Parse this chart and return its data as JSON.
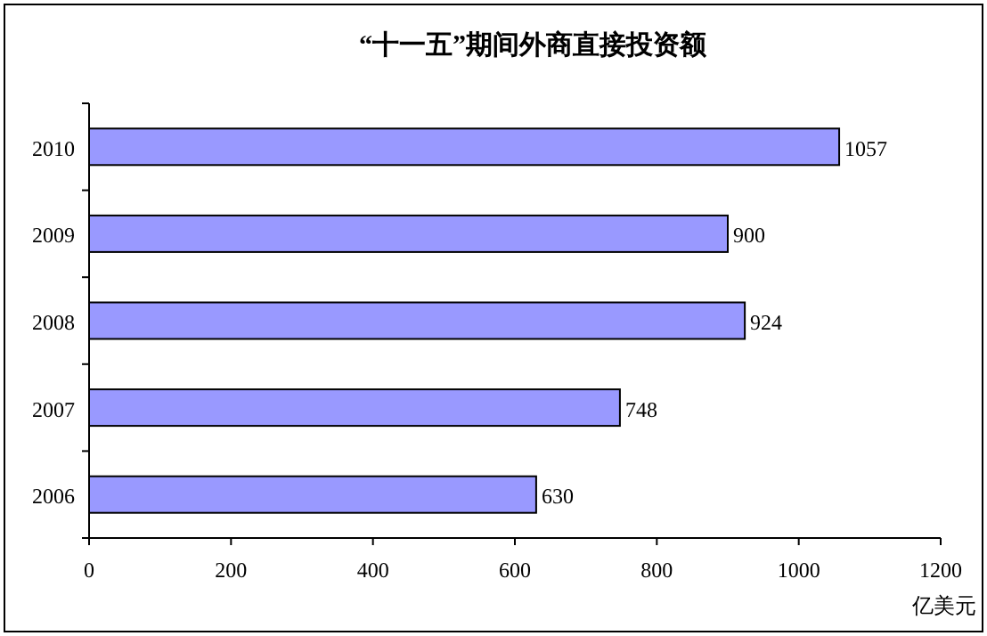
{
  "chart_data": {
    "type": "bar",
    "orientation": "horizontal",
    "title": "“十一五”期间外商直接投资额",
    "xlabel": "亿美元",
    "categories": [
      "2010",
      "2009",
      "2008",
      "2007",
      "2006"
    ],
    "series": [
      {
        "color": "#9999ff",
        "values": [
          1057,
          900,
          924,
          748,
          630
        ]
      }
    ],
    "xlim": [
      0,
      1200
    ],
    "xticks": [
      0,
      200,
      400,
      600,
      800,
      1000,
      1200
    ],
    "data_labels": true
  }
}
